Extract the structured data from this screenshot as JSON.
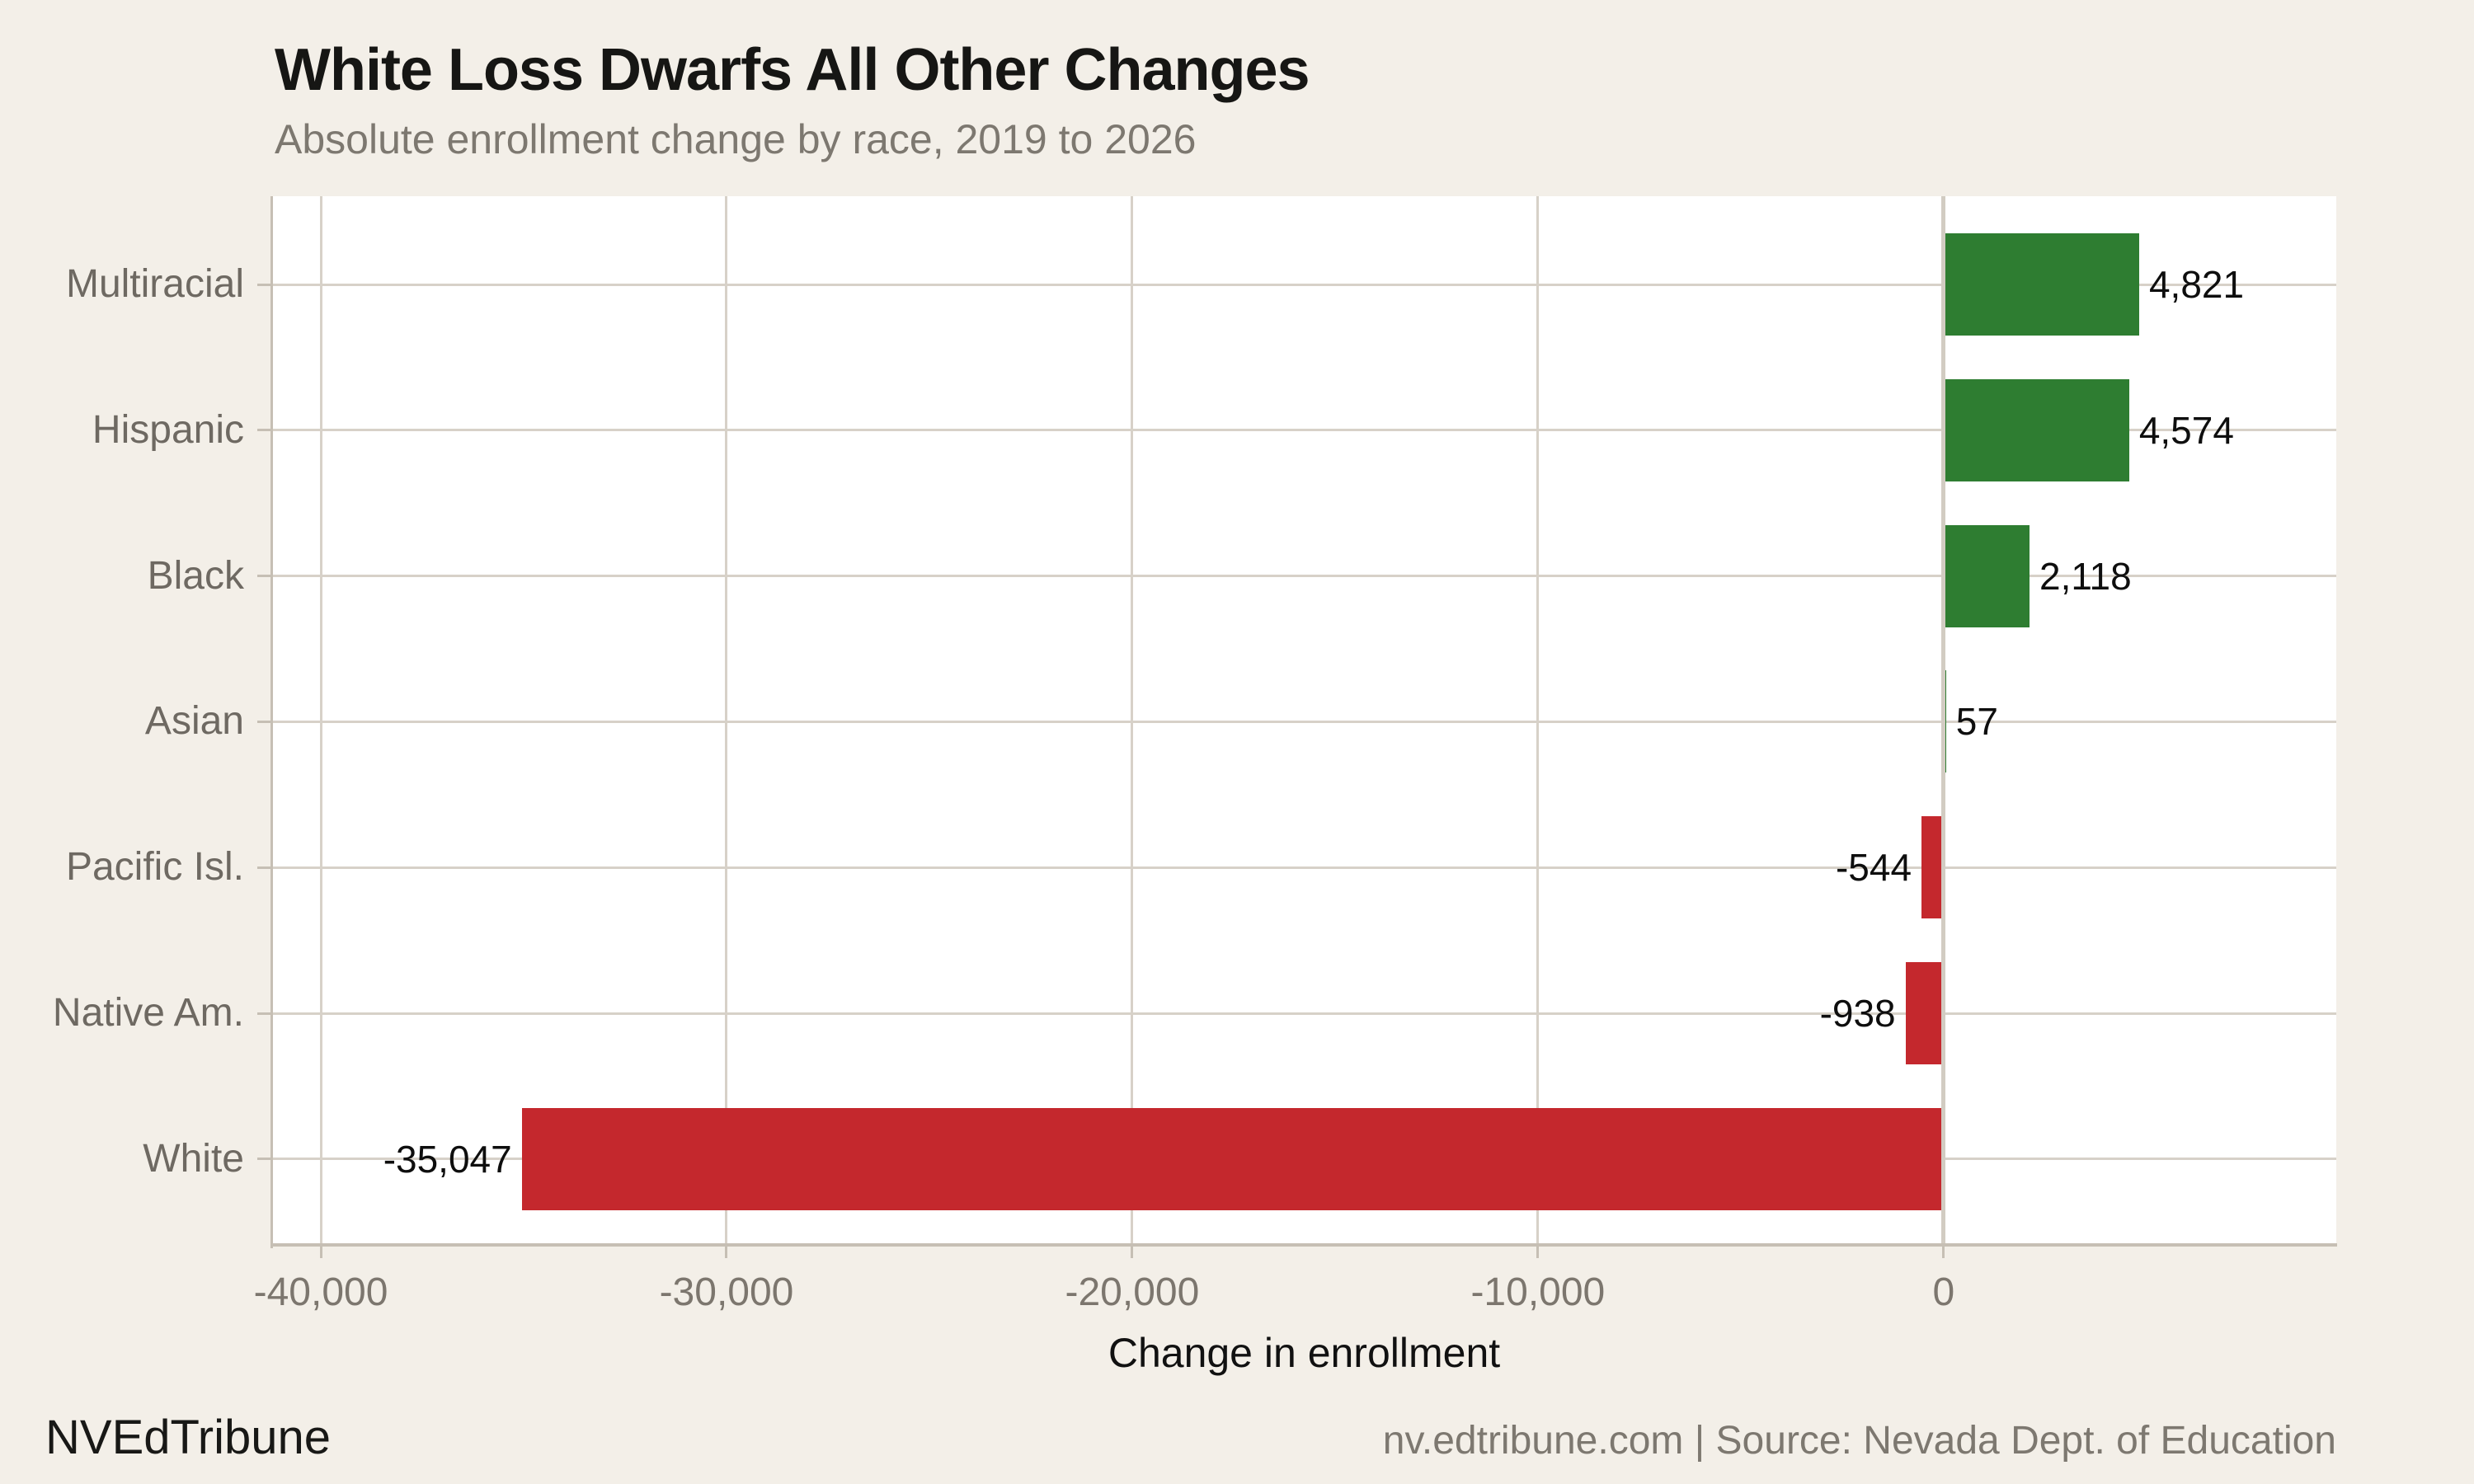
{
  "header": {
    "title": "White Loss Dwarfs All Other Changes",
    "subtitle": "Absolute enrollment change by race, 2019 to 2026"
  },
  "footer": {
    "brand": "NVEdTribune",
    "source": "nv.edtribune.com | Source: Nevada Dept. of Education"
  },
  "colors": {
    "background": "#f3efe8",
    "plot_background": "#ffffff",
    "positive_bar": "#2e7d31",
    "negative_bar": "#c4282d",
    "gridline": "#d7d1c8",
    "zero_line": "#d2ccc2",
    "spine": "#c6bfb4",
    "tick_mark": "#c6bfb4",
    "category_label": "#6e6962",
    "tick_label": "#7c766e",
    "value_label": "#0e0e0e",
    "title_text": "#161614",
    "subtitle_text": "#7d7870"
  },
  "chart_data": {
    "type": "bar",
    "orientation": "horizontal",
    "title": "White Loss Dwarfs All Other Changes",
    "subtitle": "Absolute enrollment change by race, 2019 to 2026",
    "xlabel": "Change in enrollment",
    "ylabel": "",
    "categories": [
      "Multiracial",
      "Hispanic",
      "Black",
      "Asian",
      "Pacific Isl.",
      "Native Am.",
      "White"
    ],
    "values": [
      4821,
      4574,
      2118,
      57,
      -544,
      -938,
      -35047
    ],
    "value_labels": [
      "4,821",
      "4,574",
      "2,118",
      "57",
      "-544",
      "-938",
      "-35,047"
    ],
    "xlim": [
      -41200,
      9680
    ],
    "xticks": [
      -40000,
      -30000,
      -20000,
      -10000,
      0
    ],
    "xtick_labels": [
      "-40,000",
      "-30,000",
      "-20,000",
      "-10,000",
      "0"
    ],
    "grid": true,
    "legend": false,
    "bar_color_rule": "green for positive values, red for negative values"
  }
}
